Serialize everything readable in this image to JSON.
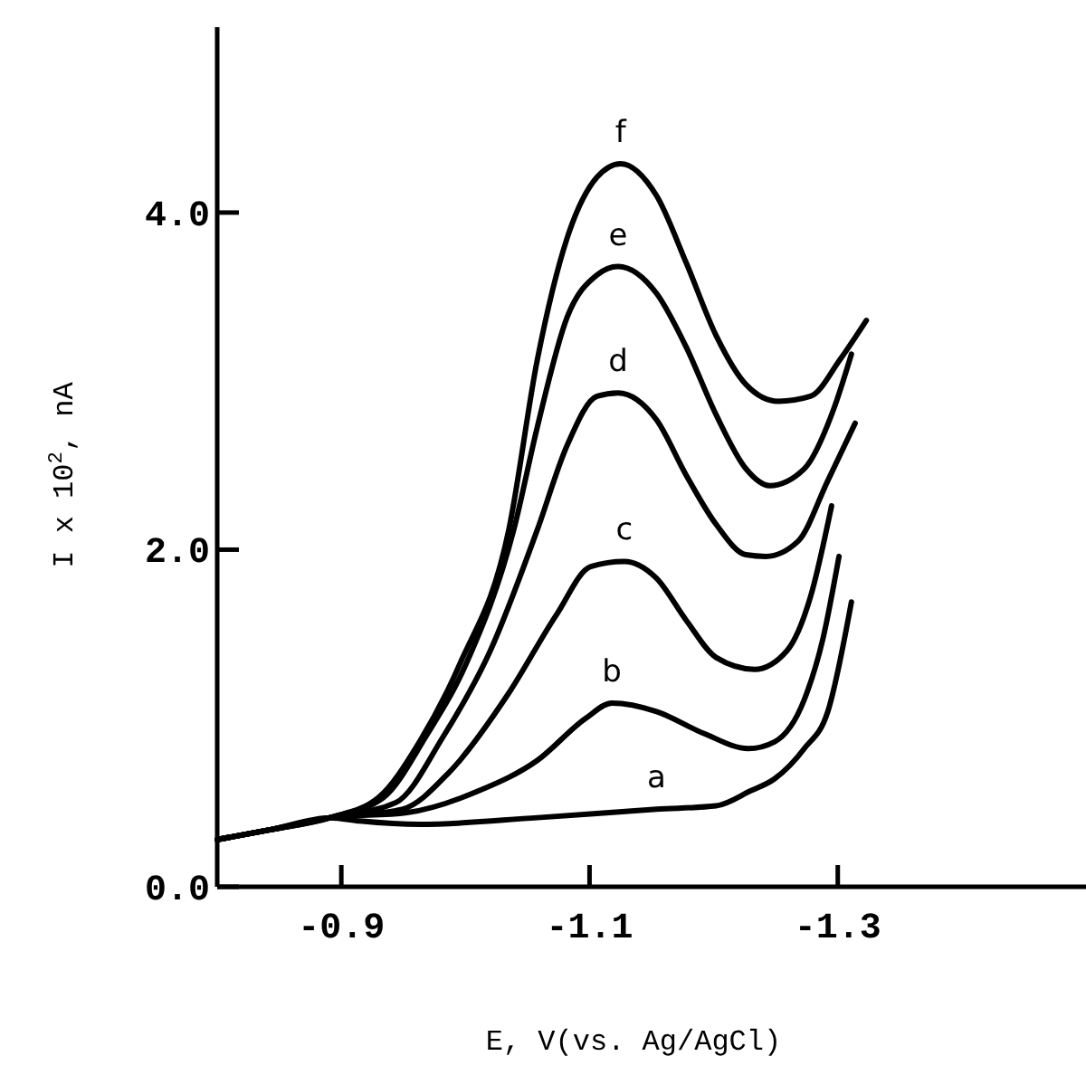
{
  "chart_data": {
    "type": "line",
    "xlabel": "E, V(vs. Ag/AgCl)",
    "ylabel": "I x 10$^{2}$, nA",
    "xlim": [
      -0.8,
      -1.5
    ],
    "xticks": [
      -0.9,
      -1.1,
      -1.3
    ],
    "ylim": [
      0,
      5.1
    ],
    "yticks": [
      {
        "value": 0,
        "label": "0.0"
      },
      {
        "value": 2,
        "label": "2.0"
      },
      {
        "value": 4,
        "label": "4.0"
      }
    ],
    "grid": false,
    "marker": "none",
    "line_style": "solid",
    "series": [
      {
        "name": "a",
        "color": "#000000",
        "x": [
          -0.8,
          -0.844,
          -0.891,
          -0.915,
          -0.963,
          -1.058,
          -1.154,
          -1.202,
          -1.23,
          -1.249,
          -1.273,
          -1.292,
          -1.311
        ],
        "values": [
          0.28,
          0.34,
          0.41,
          0.39,
          0.37,
          0.41,
          0.46,
          0.48,
          0.57,
          0.64,
          0.82,
          1.04,
          1.69
        ]
      },
      {
        "name": "b",
        "color": "#000000",
        "x": [
          -0.8,
          -0.844,
          -0.891,
          -0.953,
          -1.011,
          -1.058,
          -1.097,
          -1.118,
          -1.154,
          -1.192,
          -1.228,
          -1.249,
          -1.273,
          -1.288,
          -1.301
        ],
        "values": [
          0.28,
          0.34,
          0.41,
          0.44,
          0.57,
          0.75,
          1.0,
          1.09,
          1.04,
          0.91,
          0.82,
          0.86,
          1.11,
          1.47,
          1.96
        ]
      },
      {
        "name": "c",
        "color": "#000000",
        "x": [
          -0.8,
          -0.844,
          -0.891,
          -0.949,
          -0.987,
          -1.035,
          -1.073,
          -1.101,
          -1.128,
          -1.154,
          -1.178,
          -1.202,
          -1.233,
          -1.259,
          -1.278,
          -1.295
        ],
        "values": [
          0.28,
          0.34,
          0.41,
          0.46,
          0.68,
          1.15,
          1.61,
          1.9,
          1.93,
          1.83,
          1.58,
          1.36,
          1.29,
          1.4,
          1.72,
          2.26
        ]
      },
      {
        "name": "d",
        "color": "#000000",
        "x": [
          -0.8,
          -0.844,
          -0.891,
          -0.944,
          -0.982,
          -1.02,
          -1.058,
          -1.082,
          -1.106,
          -1.123,
          -1.154,
          -1.178,
          -1.202,
          -1.226,
          -1.242,
          -1.268,
          -1.292,
          -1.314
        ],
        "values": [
          0.28,
          0.34,
          0.41,
          0.5,
          0.89,
          1.4,
          2.12,
          2.62,
          2.91,
          2.93,
          2.77,
          2.44,
          2.15,
          1.97,
          1.96,
          2.05,
          2.41,
          2.75
        ]
      },
      {
        "name": "e",
        "color": "#000000",
        "x": [
          -0.8,
          -0.844,
          -0.891,
          -0.934,
          -0.968,
          -1.001,
          -1.039,
          -1.058,
          -1.082,
          -1.106,
          -1.123,
          -1.154,
          -1.178,
          -1.202,
          -1.226,
          -1.245,
          -1.273,
          -1.297,
          -1.311
        ],
        "values": [
          0.28,
          0.34,
          0.41,
          0.53,
          0.89,
          1.33,
          2.12,
          2.73,
          3.38,
          3.63,
          3.68,
          3.52,
          3.2,
          2.8,
          2.48,
          2.38,
          2.48,
          2.84,
          3.16
        ]
      },
      {
        "name": "f",
        "color": "#000000",
        "x": [
          -0.8,
          -0.844,
          -0.891,
          -0.93,
          -0.963,
          -0.996,
          -1.035,
          -1.058,
          -1.082,
          -1.106,
          -1.125,
          -1.154,
          -1.178,
          -1.202,
          -1.226,
          -1.252,
          -1.278,
          -1.302,
          -1.323
        ],
        "values": [
          0.28,
          0.34,
          0.41,
          0.53,
          0.86,
          1.33,
          2.12,
          3.13,
          3.85,
          4.21,
          4.29,
          4.1,
          3.7,
          3.27,
          2.98,
          2.88,
          2.91,
          3.13,
          3.36
        ]
      }
    ]
  }
}
